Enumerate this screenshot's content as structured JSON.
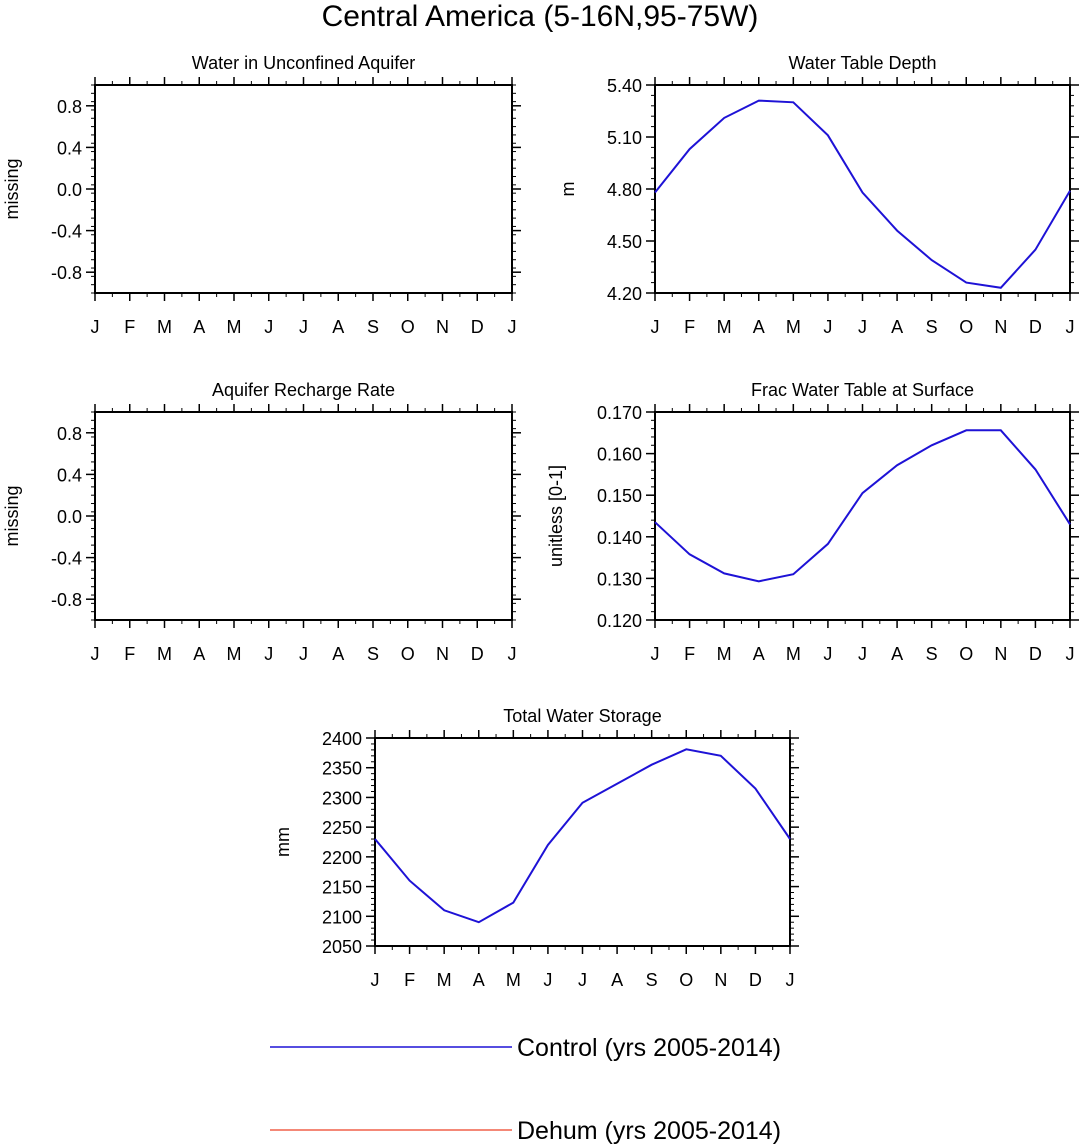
{
  "figure": {
    "title": "Central America (5-16N,95-75W)"
  },
  "months": [
    "J",
    "F",
    "M",
    "A",
    "M",
    "J",
    "J",
    "A",
    "S",
    "O",
    "N",
    "D",
    "J"
  ],
  "chart_data": [
    {
      "id": "aquifer-water",
      "type": "line",
      "title": "Water in Unconfined Aquifer",
      "ylabel": "missing",
      "xlabel": "",
      "ylim": [
        -1.0,
        1.0
      ],
      "yticks": [
        "0.8",
        "0.4",
        "0.0",
        "-0.4",
        "-0.8"
      ],
      "ytick_values": [
        0.8,
        0.4,
        0.0,
        -0.4,
        -0.8
      ],
      "series": []
    },
    {
      "id": "water-table-depth",
      "type": "line",
      "title": "Water Table Depth",
      "ylabel": "m",
      "xlabel": "",
      "ylim": [
        4.2,
        5.4
      ],
      "yticks": [
        "5.40",
        "5.10",
        "4.80",
        "4.50",
        "4.20"
      ],
      "ytick_values": [
        5.4,
        5.1,
        4.8,
        4.5,
        4.2
      ],
      "series": [
        {
          "name": "Control (yrs 2005-2014)",
          "color": "#1e12d6",
          "values": [
            4.78,
            5.03,
            5.21,
            5.31,
            5.3,
            5.11,
            4.78,
            4.56,
            4.39,
            4.26,
            4.23,
            4.45,
            4.79
          ]
        }
      ]
    },
    {
      "id": "aquifer-recharge",
      "type": "line",
      "title": "Aquifer Recharge Rate",
      "ylabel": "missing",
      "xlabel": "",
      "ylim": [
        -1.0,
        1.0
      ],
      "yticks": [
        "0.8",
        "0.4",
        "0.0",
        "-0.4",
        "-0.8"
      ],
      "ytick_values": [
        0.8,
        0.4,
        0.0,
        -0.4,
        -0.8
      ],
      "series": []
    },
    {
      "id": "frac-water-table",
      "type": "line",
      "title": "Frac Water Table at Surface",
      "ylabel": "unitless [0-1]",
      "xlabel": "",
      "ylim": [
        0.12,
        0.17
      ],
      "yticks": [
        "0.170",
        "0.160",
        "0.150",
        "0.140",
        "0.130",
        "0.120"
      ],
      "ytick_values": [
        0.17,
        0.16,
        0.15,
        0.14,
        0.13,
        0.12
      ],
      "series": [
        {
          "name": "Control (yrs 2005-2014)",
          "color": "#1e12d6",
          "values": [
            0.1435,
            0.1358,
            0.1312,
            0.1293,
            0.131,
            0.1383,
            0.1505,
            0.1572,
            0.162,
            0.1656,
            0.1656,
            0.1562,
            0.143
          ]
        }
      ]
    },
    {
      "id": "total-water-storage",
      "type": "line",
      "title": "Total Water Storage",
      "ylabel": "mm",
      "xlabel": "",
      "ylim": [
        2050,
        2400
      ],
      "yticks": [
        "2400",
        "2350",
        "2300",
        "2250",
        "2200",
        "2150",
        "2100",
        "2050"
      ],
      "ytick_values": [
        2400,
        2350,
        2300,
        2250,
        2200,
        2150,
        2100,
        2050
      ],
      "series": [
        {
          "name": "Control (yrs 2005-2014)",
          "color": "#1e12d6",
          "values": [
            2230,
            2160,
            2110,
            2090,
            2123,
            2220,
            2291,
            2323,
            2355,
            2381,
            2370,
            2315,
            2230
          ]
        }
      ]
    }
  ],
  "legend": {
    "items": [
      {
        "label": "Control (yrs 2005-2014)",
        "color": "#1e12d6"
      },
      {
        "label": "Dehum (yrs 2005-2014)",
        "color": "#f0604a"
      }
    ]
  }
}
